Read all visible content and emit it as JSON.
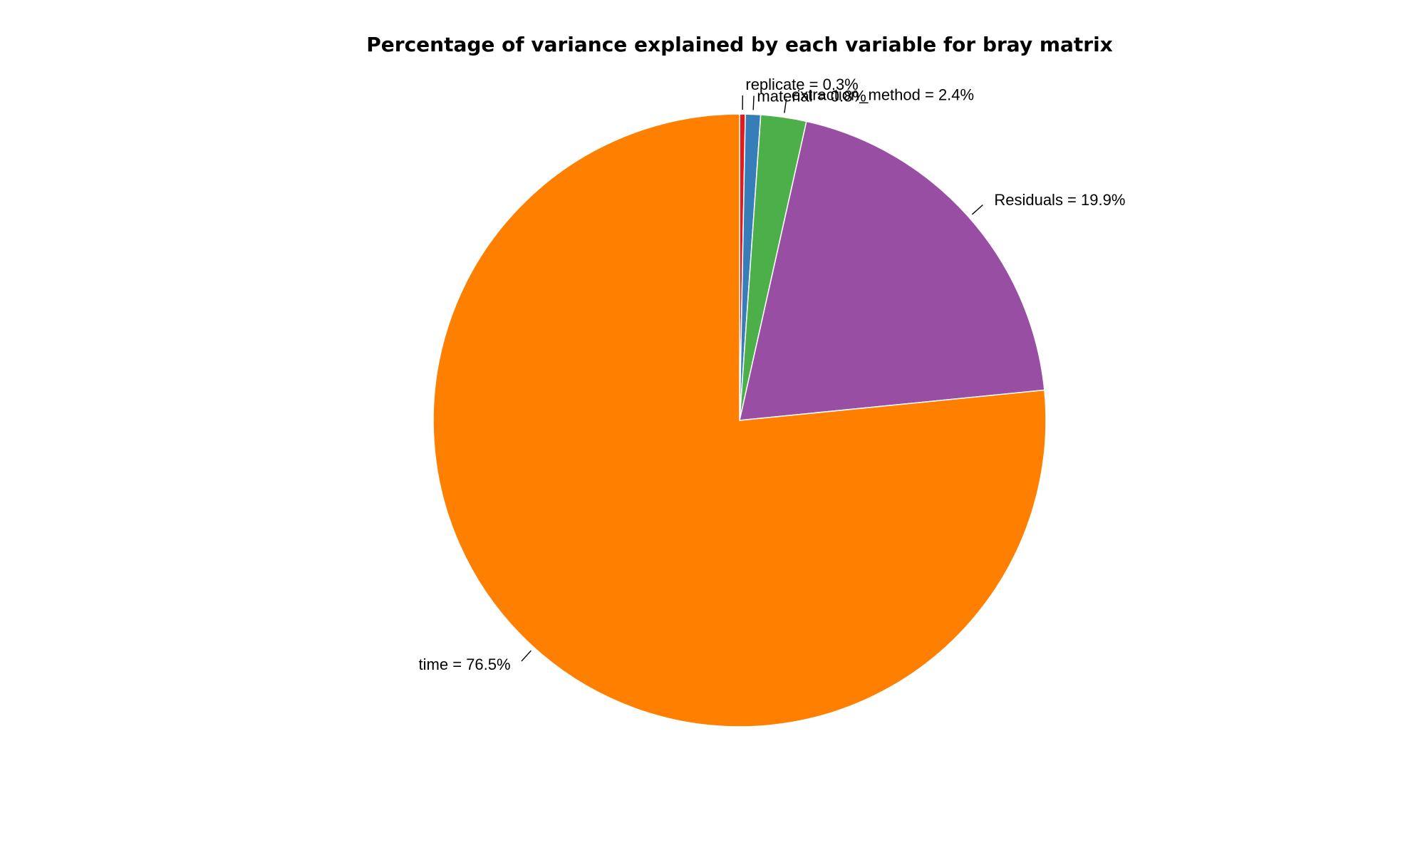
{
  "chart_data": {
    "type": "pie",
    "title": "Percentage of variance explained by each variable for bray matrix",
    "slices": [
      {
        "name": "replicate",
        "value": 0.3,
        "label": "replicate = 0.3%",
        "color": "#e41a1c"
      },
      {
        "name": "material",
        "value": 0.8,
        "label": "material = 0.8%",
        "color": "#377eb8"
      },
      {
        "name": "extraction_method",
        "value": 2.4,
        "label": "extraction_method = 2.4%",
        "color": "#4daf4a"
      },
      {
        "name": "Residuals",
        "value": 19.9,
        "label": "Residuals = 19.9%",
        "color": "#984ea3"
      },
      {
        "name": "time",
        "value": 76.5,
        "label": "time = 76.5%",
        "color": "#ff7f00"
      }
    ],
    "start": "12 o'clock",
    "direction": "clockwise",
    "grid": false,
    "legend": "none"
  }
}
